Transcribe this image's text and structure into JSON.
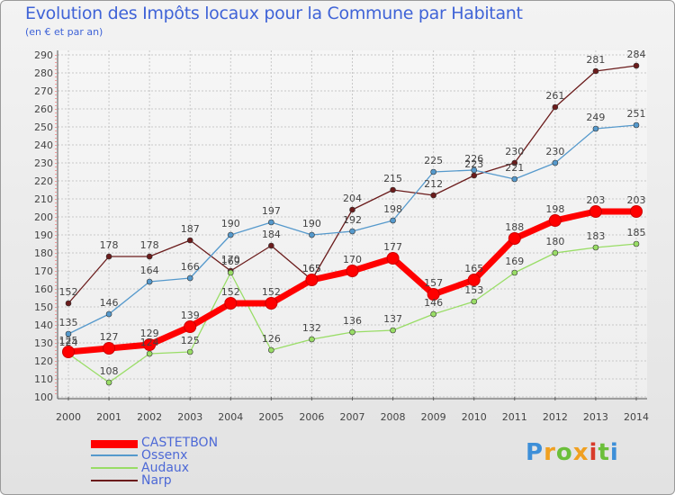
{
  "header": {
    "title": "Evolution des Impôts locaux pour la Commune par Habitant",
    "subtitle": "(en € et par an)"
  },
  "chart_data": {
    "type": "line",
    "title": "Evolution des Impôts locaux pour la Commune par Habitant",
    "subtitle": "(en € et par an)",
    "xlabel": "",
    "ylabel": "",
    "x": [
      "2000",
      "2001",
      "2002",
      "2003",
      "2004",
      "2005",
      "2006",
      "2007",
      "2008",
      "2009",
      "2010",
      "2011",
      "2012",
      "2013",
      "2014"
    ],
    "ylim": [
      100,
      290
    ],
    "yticks": [
      100,
      110,
      120,
      130,
      140,
      150,
      160,
      170,
      180,
      190,
      200,
      210,
      220,
      230,
      240,
      250,
      260,
      270,
      280,
      290
    ],
    "grid": true,
    "legend_position": "bottom-left",
    "series": [
      {
        "name": "Narp",
        "color": "#6b1c1c",
        "values": [
          152,
          178,
          178,
          187,
          170,
          184,
          165,
          204,
          215,
          212,
          223,
          230,
          261,
          281,
          284
        ]
      },
      {
        "name": "Ossenx",
        "color": "#5599cc",
        "values": [
          135,
          146,
          164,
          166,
          190,
          197,
          190,
          192,
          198,
          225,
          226,
          221,
          230,
          249,
          251
        ]
      },
      {
        "name": "Audaux",
        "color": "#99dd66",
        "values": [
          124,
          108,
          124,
          125,
          169,
          126,
          132,
          136,
          137,
          146,
          153,
          169,
          180,
          183,
          185
        ]
      },
      {
        "name": "CASTETBON",
        "color": "#ff0000",
        "values": [
          125,
          127,
          129,
          139,
          152,
          152,
          165,
          170,
          177,
          157,
          165,
          188,
          198,
          203,
          203
        ]
      }
    ]
  },
  "legend": {
    "items": [
      {
        "label": "CASTETBON",
        "color": "#ff0000"
      },
      {
        "label": "Ossenx",
        "color": "#5599cc"
      },
      {
        "label": "Audaux",
        "color": "#99dd66"
      },
      {
        "label": "Narp",
        "color": "#6b1c1c"
      }
    ]
  },
  "logo": {
    "letters": [
      "P",
      "r",
      "o",
      "x",
      "i",
      "t",
      "i"
    ],
    "colors": [
      "#3d8fd8",
      "#f0a020",
      "#6bbf3a",
      "#f0a020",
      "#d83a2a",
      "#6bbf3a",
      "#3d8fd8"
    ]
  }
}
